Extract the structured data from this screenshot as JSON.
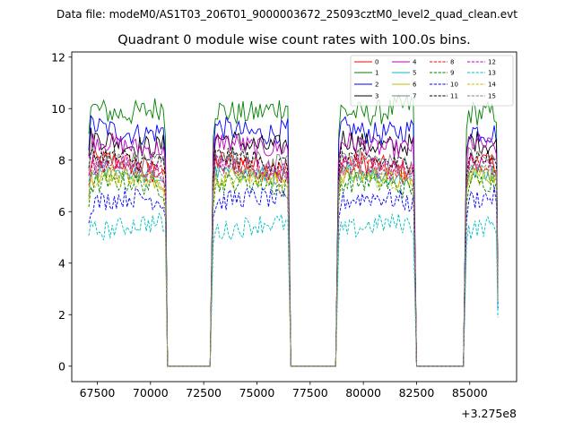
{
  "header": {
    "data_file": "Data file: modeM0/AS1T03_206T01_9000003672_25093cztM0_level2_quad_clean.evt"
  },
  "chart_data": {
    "type": "line",
    "title": "Quadrant 0 module wise count rates with 100.0s bins.",
    "xlabel": "",
    "ylabel": "",
    "x_offset_label": "+3.275e8",
    "x_offset": 327500000,
    "xlim": [
      66300,
      87200
    ],
    "ylim": [
      -0.6,
      12.2
    ],
    "x_ticks": [
      67500,
      70000,
      72500,
      75000,
      77500,
      80000,
      82500,
      85000
    ],
    "x_tick_labels": [
      "67500",
      "70000",
      "72500",
      "75000",
      "77500",
      "80000",
      "82500",
      "85000"
    ],
    "y_ticks": [
      0,
      2,
      4,
      6,
      8,
      10,
      12
    ],
    "y_tick_labels": [
      "0",
      "2",
      "4",
      "6",
      "8",
      "10",
      "12"
    ],
    "bin_seconds": 100,
    "segments": [
      {
        "start": 67100,
        "end": 70700
      },
      {
        "start": 72950,
        "end": 76500
      },
      {
        "start": 78850,
        "end": 82400
      },
      {
        "start": 84850,
        "end": 86300
      }
    ],
    "gaps": [
      {
        "start": 70800,
        "end": 72850
      },
      {
        "start": 76600,
        "end": 78750
      },
      {
        "start": 82500,
        "end": 84750
      }
    ],
    "legend_position": "top-right",
    "series": [
      {
        "name": "0",
        "color": "#ff0000",
        "dash": "solid",
        "level": 7.8,
        "amp": 0.45
      },
      {
        "name": "1",
        "color": "#008000",
        "dash": "solid",
        "level": 10.0,
        "amp": 0.5
      },
      {
        "name": "2",
        "color": "#0000ff",
        "dash": "solid",
        "level": 9.2,
        "amp": 0.45
      },
      {
        "name": "3",
        "color": "#000000",
        "dash": "solid",
        "level": 8.7,
        "amp": 0.45
      },
      {
        "name": "4",
        "color": "#bf00bf",
        "dash": "solid",
        "level": 8.6,
        "amp": 0.4
      },
      {
        "name": "5",
        "color": "#00bfbf",
        "dash": "solid",
        "level": 7.4,
        "amp": 0.35
      },
      {
        "name": "6",
        "color": "#bfbf00",
        "dash": "solid",
        "level": 7.3,
        "amp": 0.35
      },
      {
        "name": "7",
        "color": "#808080",
        "dash": "solid",
        "level": 8.0,
        "amp": 0.4
      },
      {
        "name": "8",
        "color": "#ff0000",
        "dash": "dashed",
        "level": 7.6,
        "amp": 0.4
      },
      {
        "name": "9",
        "color": "#008000",
        "dash": "dashed",
        "level": 7.0,
        "amp": 0.4
      },
      {
        "name": "10",
        "color": "#0000ff",
        "dash": "dashed",
        "level": 6.4,
        "amp": 0.4
      },
      {
        "name": "11",
        "color": "#000000",
        "dash": "dashed",
        "level": 8.0,
        "amp": 0.4
      },
      {
        "name": "12",
        "color": "#bf00bf",
        "dash": "dashed",
        "level": 7.7,
        "amp": 0.4
      },
      {
        "name": "13",
        "color": "#00bfbf",
        "dash": "dashed",
        "level": 5.4,
        "amp": 0.4
      },
      {
        "name": "14",
        "color": "#bfbf00",
        "dash": "dashed",
        "level": 7.2,
        "amp": 0.4
      },
      {
        "name": "15",
        "color": "#808080",
        "dash": "dashed",
        "level": 7.5,
        "amp": 0.4
      }
    ]
  }
}
